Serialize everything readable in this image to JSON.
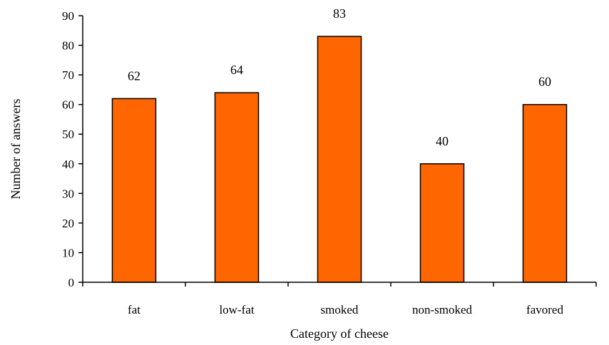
{
  "chart_data": {
    "type": "bar",
    "categories": [
      "fat",
      "low-fat",
      "smoked",
      "non-smoked",
      "favored"
    ],
    "values": [
      62,
      64,
      83,
      40,
      60
    ],
    "data_labels": [
      "62",
      "64",
      "83",
      "40",
      "60"
    ],
    "title": "",
    "xlabel": "Category of cheese",
    "ylabel": "Number of answers",
    "ylim": [
      0,
      90
    ],
    "yticks": [
      0,
      10,
      20,
      30,
      40,
      50,
      60,
      70,
      80,
      90
    ],
    "ytick_labels": [
      "0",
      "10",
      "20",
      "30",
      "40",
      "50",
      "60",
      "70",
      "80",
      "90"
    ],
    "grid": false,
    "legend": "none",
    "colors": {
      "bar_fill": "#FF6600",
      "bar_stroke": "#000000",
      "axis": "#000000"
    }
  }
}
